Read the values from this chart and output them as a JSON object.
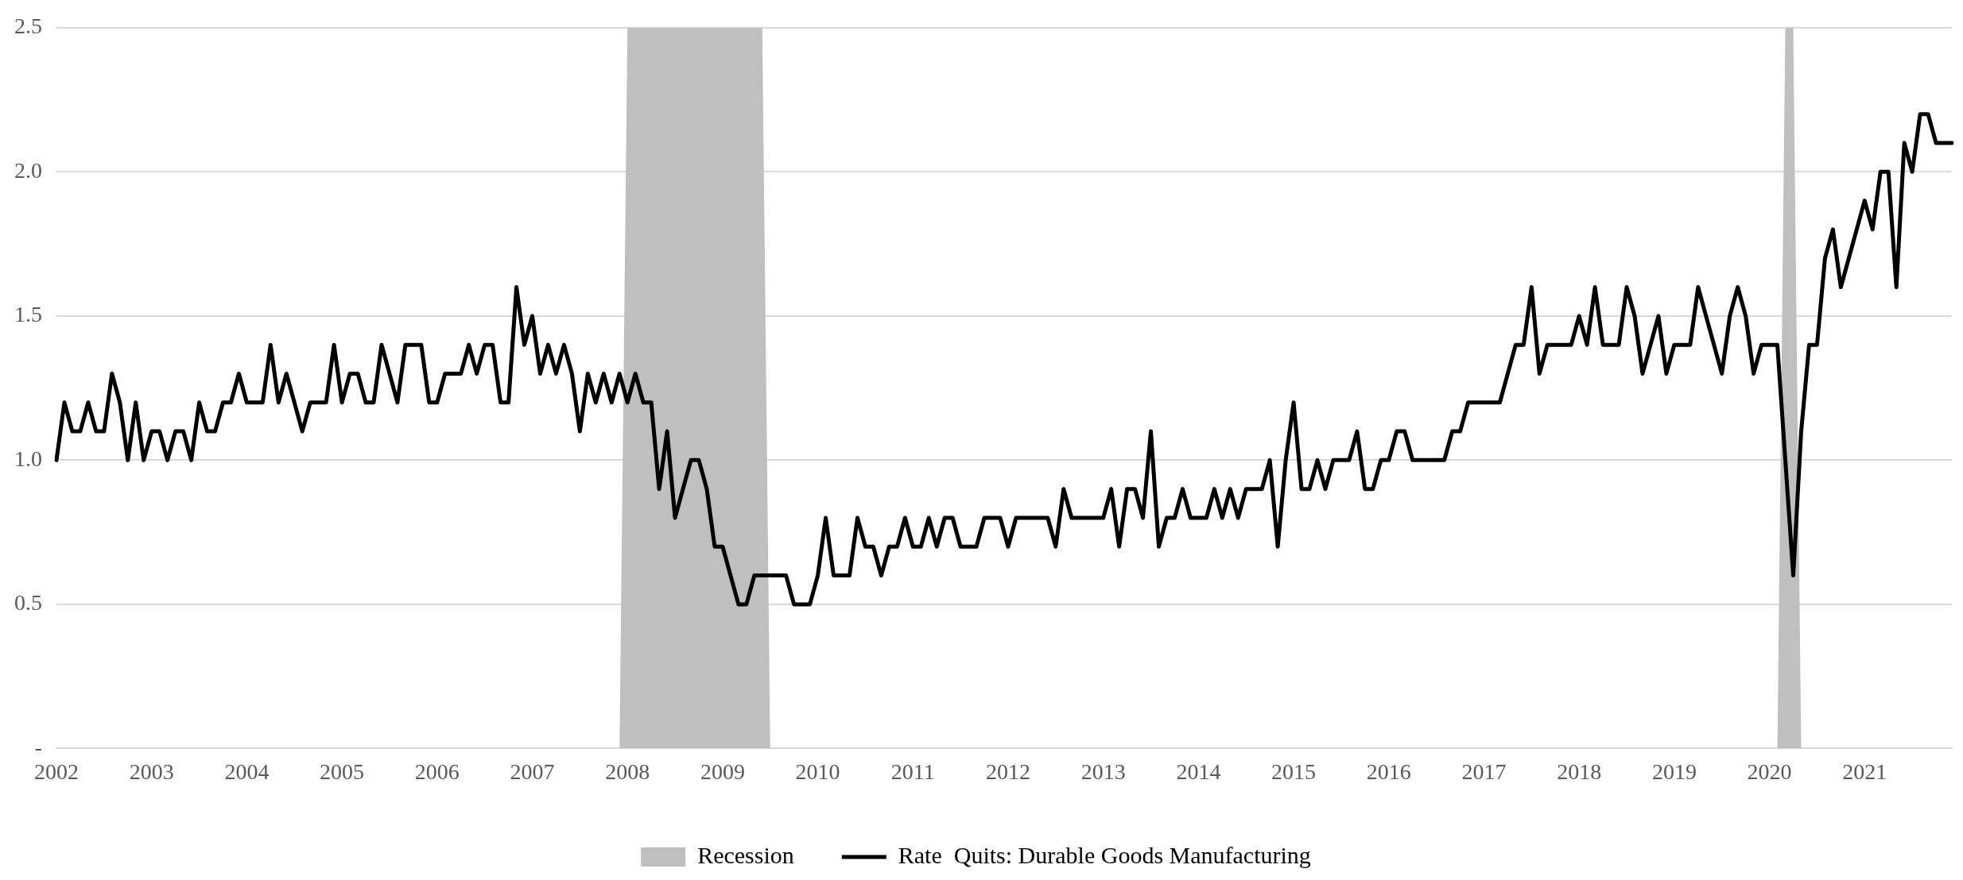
{
  "chart_data": {
    "type": "line",
    "categories": [
      "2002",
      null,
      null,
      null,
      null,
      null,
      null,
      null,
      null,
      null,
      null,
      null,
      "2003",
      null,
      null,
      null,
      null,
      null,
      null,
      null,
      null,
      null,
      null,
      null,
      "2004",
      null,
      null,
      null,
      null,
      null,
      null,
      null,
      null,
      null,
      null,
      null,
      "2005",
      null,
      null,
      null,
      null,
      null,
      null,
      null,
      null,
      null,
      null,
      null,
      "2006",
      null,
      null,
      null,
      null,
      null,
      null,
      null,
      null,
      null,
      null,
      null,
      "2007",
      null,
      null,
      null,
      null,
      null,
      null,
      null,
      null,
      null,
      null,
      null,
      "2008",
      null,
      null,
      null,
      null,
      null,
      null,
      null,
      null,
      null,
      null,
      null,
      "2009",
      null,
      null,
      null,
      null,
      null,
      null,
      null,
      null,
      null,
      null,
      null,
      "2010",
      null,
      null,
      null,
      null,
      null,
      null,
      null,
      null,
      null,
      null,
      null,
      "2011",
      null,
      null,
      null,
      null,
      null,
      null,
      null,
      null,
      null,
      null,
      null,
      "2012",
      null,
      null,
      null,
      null,
      null,
      null,
      null,
      null,
      null,
      null,
      null,
      "2013",
      null,
      null,
      null,
      null,
      null,
      null,
      null,
      null,
      null,
      null,
      null,
      "2014",
      null,
      null,
      null,
      null,
      null,
      null,
      null,
      null,
      null,
      null,
      null,
      "2015",
      null,
      null,
      null,
      null,
      null,
      null,
      null,
      null,
      null,
      null,
      null,
      "2016",
      null,
      null,
      null,
      null,
      null,
      null,
      null,
      null,
      null,
      null,
      null,
      "2017",
      null,
      null,
      null,
      null,
      null,
      null,
      null,
      null,
      null,
      null,
      null,
      "2018",
      null,
      null,
      null,
      null,
      null,
      null,
      null,
      null,
      null,
      null,
      null,
      "2019",
      null,
      null,
      null,
      null,
      null,
      null,
      null,
      null,
      null,
      null,
      null,
      "2020",
      null,
      null,
      null,
      null,
      null,
      null,
      null,
      null,
      null,
      null,
      null,
      "2021",
      null,
      null,
      null,
      null,
      null,
      null,
      null,
      null,
      null,
      null,
      null
    ],
    "series": [
      {
        "name": "Recession",
        "type": "area",
        "color": "#bfbfbf",
        "values": [
          0,
          0,
          0,
          0,
          0,
          0,
          0,
          0,
          0,
          0,
          0,
          0,
          0,
          0,
          0,
          0,
          0,
          0,
          0,
          0,
          0,
          0,
          0,
          0,
          0,
          0,
          0,
          0,
          0,
          0,
          0,
          0,
          0,
          0,
          0,
          0,
          0,
          0,
          0,
          0,
          0,
          0,
          0,
          0,
          0,
          0,
          0,
          0,
          0,
          0,
          0,
          0,
          0,
          0,
          0,
          0,
          0,
          0,
          0,
          0,
          0,
          0,
          0,
          0,
          0,
          0,
          0,
          0,
          0,
          0,
          0,
          0,
          2.5,
          2.5,
          2.5,
          2.5,
          2.5,
          2.5,
          2.5,
          2.5,
          2.5,
          2.5,
          2.5,
          2.5,
          2.5,
          2.5,
          2.5,
          2.5,
          2.5,
          2.5,
          0,
          0,
          0,
          0,
          0,
          0,
          0,
          0,
          0,
          0,
          0,
          0,
          0,
          0,
          0,
          0,
          0,
          0,
          0,
          0,
          0,
          0,
          0,
          0,
          0,
          0,
          0,
          0,
          0,
          0,
          0,
          0,
          0,
          0,
          0,
          0,
          0,
          0,
          0,
          0,
          0,
          0,
          0,
          0,
          0,
          0,
          0,
          0,
          0,
          0,
          0,
          0,
          0,
          0,
          0,
          0,
          0,
          0,
          0,
          0,
          0,
          0,
          0,
          0,
          0,
          0,
          0,
          0,
          0,
          0,
          0,
          0,
          0,
          0,
          0,
          0,
          0,
          0,
          0,
          0,
          0,
          0,
          0,
          0,
          0,
          0,
          0,
          0,
          0,
          0,
          0,
          0,
          0,
          0,
          0,
          0,
          0,
          0,
          0,
          0,
          0,
          0,
          0,
          0,
          0,
          0,
          0,
          0,
          0,
          0,
          0,
          0,
          0,
          0,
          0,
          0,
          0,
          0,
          0,
          0,
          0,
          0,
          0,
          0,
          0,
          0,
          0,
          0,
          2.5,
          2.5,
          0,
          0,
          0,
          0,
          0,
          0,
          0,
          0,
          0,
          0,
          0,
          0,
          0,
          0,
          0,
          0,
          0,
          0,
          0,
          0
        ]
      },
      {
        "name": "Rate  Quits: Durable Goods Manufacturing",
        "color": "#000000",
        "values": [
          1.0,
          1.2,
          1.1,
          1.1,
          1.2,
          1.1,
          1.1,
          1.3,
          1.2,
          1.0,
          1.2,
          1.0,
          1.1,
          1.1,
          1.0,
          1.1,
          1.1,
          1.0,
          1.2,
          1.1,
          1.1,
          1.2,
          1.2,
          1.3,
          1.2,
          1.2,
          1.2,
          1.4,
          1.2,
          1.3,
          1.2,
          1.1,
          1.2,
          1.2,
          1.2,
          1.4,
          1.2,
          1.3,
          1.3,
          1.2,
          1.2,
          1.4,
          1.3,
          1.2,
          1.4,
          1.4,
          1.4,
          1.2,
          1.2,
          1.3,
          1.3,
          1.3,
          1.4,
          1.3,
          1.4,
          1.4,
          1.2,
          1.2,
          1.6,
          1.4,
          1.5,
          1.3,
          1.4,
          1.3,
          1.4,
          1.3,
          1.1,
          1.3,
          1.2,
          1.3,
          1.2,
          1.3,
          1.2,
          1.3,
          1.2,
          1.2,
          0.9,
          1.1,
          0.8,
          0.9,
          1.0,
          1.0,
          0.9,
          0.7,
          0.7,
          0.6,
          0.5,
          0.5,
          0.6,
          0.6,
          0.6,
          0.6,
          0.6,
          0.5,
          0.5,
          0.5,
          0.6,
          0.8,
          0.6,
          0.6,
          0.6,
          0.8,
          0.7,
          0.7,
          0.6,
          0.7,
          0.7,
          0.8,
          0.7,
          0.7,
          0.8,
          0.7,
          0.8,
          0.8,
          0.7,
          0.7,
          0.7,
          0.8,
          0.8,
          0.8,
          0.7,
          0.8,
          0.8,
          0.8,
          0.8,
          0.8,
          0.7,
          0.9,
          0.8,
          0.8,
          0.8,
          0.8,
          0.8,
          0.9,
          0.7,
          0.9,
          0.9,
          0.8,
          1.1,
          0.7,
          0.8,
          0.8,
          0.9,
          0.8,
          0.8,
          0.8,
          0.9,
          0.8,
          0.9,
          0.8,
          0.9,
          0.9,
          0.9,
          1.0,
          0.7,
          1.0,
          1.2,
          0.9,
          0.9,
          1.0,
          0.9,
          1.0,
          1.0,
          1.0,
          1.1,
          0.9,
          0.9,
          1.0,
          1.0,
          1.1,
          1.1,
          1.0,
          1.0,
          1.0,
          1.0,
          1.0,
          1.1,
          1.1,
          1.2,
          1.2,
          1.2,
          1.2,
          1.2,
          1.3,
          1.4,
          1.4,
          1.6,
          1.3,
          1.4,
          1.4,
          1.4,
          1.4,
          1.5,
          1.4,
          1.6,
          1.4,
          1.4,
          1.4,
          1.6,
          1.5,
          1.3,
          1.4,
          1.5,
          1.3,
          1.4,
          1.4,
          1.4,
          1.6,
          1.5,
          1.4,
          1.3,
          1.5,
          1.6,
          1.5,
          1.3,
          1.4,
          1.4,
          1.4,
          1.0,
          0.6,
          1.1,
          1.4,
          1.4,
          1.7,
          1.8,
          1.6,
          1.7,
          1.8,
          1.9,
          1.8,
          2.0,
          2.0,
          1.6,
          2.1,
          2.0,
          2.2,
          2.2,
          2.1,
          2.1,
          2.1
        ]
      }
    ],
    "ylim": [
      0,
      2.5
    ],
    "yticks": [
      {
        "value": 0,
        "label": "-"
      },
      0.5,
      {
        "value": 1.0,
        "label": "1.0"
      },
      1.5,
      {
        "value": 2.0,
        "label": "2.0"
      },
      2.5
    ],
    "grid": "y",
    "legend": "bottom",
    "marker": "none",
    "line_style": "solid"
  }
}
